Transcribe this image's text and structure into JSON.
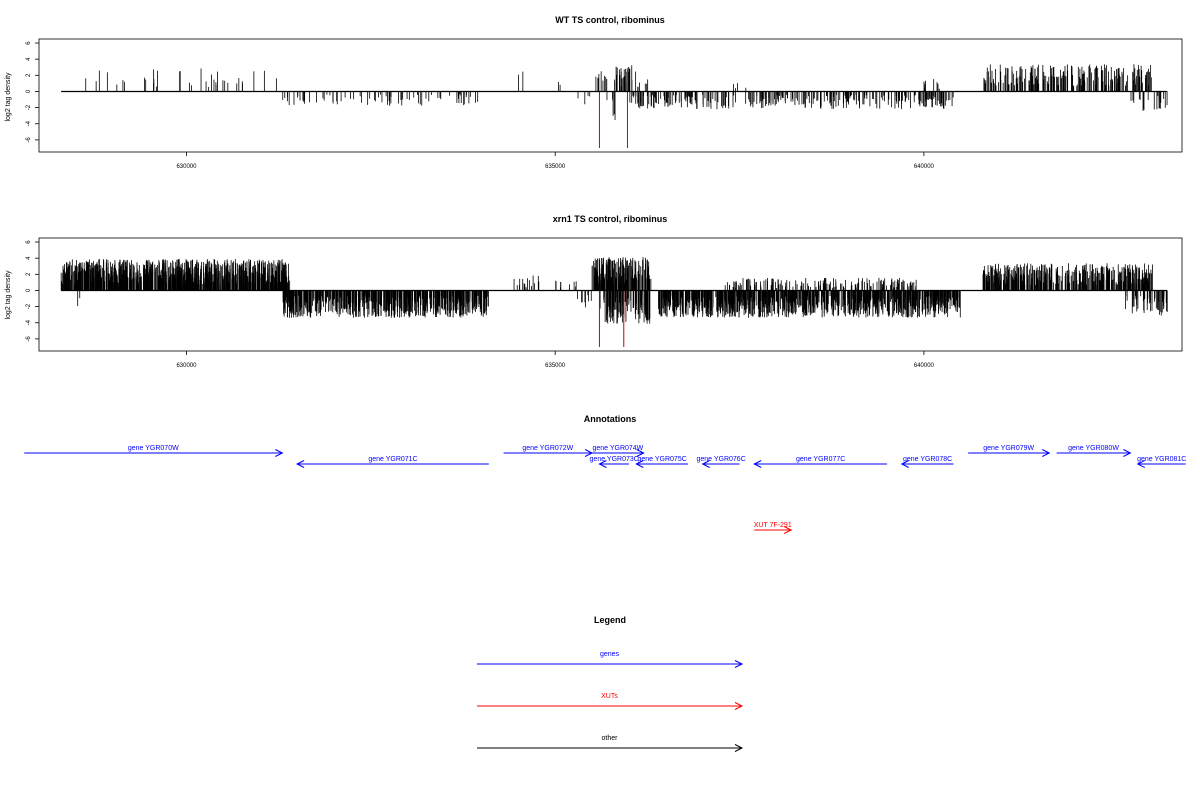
{
  "chart_data": [
    {
      "type": "bar",
      "title": "WT TS control, ribominus",
      "xlabel": "",
      "ylabel": "log2 tag density",
      "xlim": [
        628000,
        643500
      ],
      "ylim": [
        -7.5,
        6.5
      ],
      "x_ticks": [
        630000,
        635000,
        640000
      ],
      "x_tick_labels": [
        "630000",
        "635000",
        "640000"
      ],
      "y_ticks": [
        -6,
        -4,
        -2,
        0,
        2,
        4,
        6
      ],
      "y_tick_labels": [
        "-6",
        "-4",
        "-2",
        "0",
        "2",
        "4",
        "6"
      ],
      "baseline": {
        "x_start": 628300,
        "x_end": 643300,
        "y": 0
      },
      "bar_color": "#000000",
      "highlight_color": "#cc0000",
      "positive_regions": [
        {
          "from": 628300,
          "to": 631300,
          "height": 2.2,
          "density": 0.012
        },
        {
          "from": 634500,
          "to": 634600,
          "height": 2.5,
          "density": 0.02
        },
        {
          "from": 635000,
          "to": 635100,
          "height": 1.5,
          "density": 0.02
        },
        {
          "from": 635550,
          "to": 635700,
          "height": 2.0,
          "density": 0.06
        },
        {
          "from": 635800,
          "to": 636100,
          "height": 2.5,
          "density": 0.1
        },
        {
          "from": 636100,
          "to": 636300,
          "height": 1.5,
          "density": 0.03
        },
        {
          "from": 637400,
          "to": 637600,
          "height": 0.8,
          "density": 0.02
        },
        {
          "from": 639900,
          "to": 640300,
          "height": 1.2,
          "density": 0.02
        },
        {
          "from": 640800,
          "to": 643100,
          "height": 2.6,
          "density": 0.09
        }
      ],
      "negative_regions": [
        {
          "from": 631300,
          "to": 634000,
          "height": -1.4,
          "density": 0.028
        },
        {
          "from": 635300,
          "to": 635500,
          "height": -1.4,
          "density": 0.02
        },
        {
          "from": 635700,
          "to": 635850,
          "height": -3.0,
          "density": 0.04
        },
        {
          "from": 636000,
          "to": 640400,
          "height": -1.7,
          "density": 0.07
        },
        {
          "from": 642800,
          "to": 643300,
          "height": -2.0,
          "density": 0.04
        }
      ],
      "highlight_bars": [
        {
          "x": 635600,
          "y": -7.0
        },
        {
          "x": 635980,
          "y": -7.0
        }
      ]
    },
    {
      "type": "bar",
      "title": "xrn1 TS control, ribominus",
      "xlabel": "",
      "ylabel": "log2 tag density",
      "xlim": [
        628000,
        643500
      ],
      "ylim": [
        -7.5,
        6.5
      ],
      "x_ticks": [
        630000,
        635000,
        640000
      ],
      "x_tick_labels": [
        "630000",
        "635000",
        "640000"
      ],
      "y_ticks": [
        -6,
        -4,
        -2,
        0,
        2,
        4,
        6
      ],
      "y_tick_labels": [
        "-6",
        "-4",
        "-2",
        "0",
        "2",
        "4",
        "6"
      ],
      "baseline": {
        "x_start": 628300,
        "x_end": 643300,
        "y": 0
      },
      "bar_color": "#000000",
      "highlight_color": "#cc0000",
      "positive_regions": [
        {
          "from": 628300,
          "to": 631400,
          "height": 3.0,
          "density": 0.25
        },
        {
          "from": 634400,
          "to": 634800,
          "height": 1.5,
          "density": 0.04
        },
        {
          "from": 635000,
          "to": 635300,
          "height": 1.0,
          "density": 0.03
        },
        {
          "from": 635500,
          "to": 636300,
          "height": 3.2,
          "density": 0.22
        },
        {
          "from": 637300,
          "to": 639900,
          "height": 1.2,
          "density": 0.06
        },
        {
          "from": 640800,
          "to": 643100,
          "height": 2.6,
          "density": 0.18
        }
      ],
      "negative_regions": [
        {
          "from": 628500,
          "to": 628600,
          "height": -1.8,
          "density": 0.02
        },
        {
          "from": 631300,
          "to": 634100,
          "height": -2.6,
          "density": 0.2
        },
        {
          "from": 635300,
          "to": 635500,
          "height": -1.8,
          "density": 0.04
        },
        {
          "from": 635600,
          "to": 636300,
          "height": -3.2,
          "density": 0.15
        },
        {
          "from": 636400,
          "to": 640500,
          "height": -2.6,
          "density": 0.22
        },
        {
          "from": 642700,
          "to": 643300,
          "height": -2.4,
          "density": 0.08
        }
      ],
      "highlight_bars": [
        {
          "x": 635600,
          "y": -7.0
        },
        {
          "x": 635930,
          "y": -7.0
        }
      ]
    }
  ],
  "annotations": {
    "title": "Annotations",
    "items": [
      {
        "label": "gene YGR070W",
        "from": 627800,
        "to": 631300,
        "row": 0,
        "strand": "+",
        "color": "#0000ff"
      },
      {
        "label": "gene YGR071C",
        "from": 631500,
        "to": 634100,
        "row": 1,
        "strand": "-",
        "color": "#0000ff"
      },
      {
        "label": "gene YGR072W",
        "from": 634300,
        "to": 635500,
        "row": 0,
        "strand": "+",
        "color": "#0000ff"
      },
      {
        "label": "gene YGR074W",
        "from": 635500,
        "to": 636200,
        "row": 0,
        "strand": "+",
        "color": "#0000ff"
      },
      {
        "label": "gene YGR073C",
        "from": 635600,
        "to": 636000,
        "row": 1,
        "strand": "-",
        "color": "#0000ff"
      },
      {
        "label": "gene YGR075C",
        "from": 636100,
        "to": 636800,
        "row": 1,
        "strand": "-",
        "color": "#0000ff"
      },
      {
        "label": "gene YGR076C",
        "from": 637000,
        "to": 637500,
        "row": 1,
        "strand": "-",
        "color": "#0000ff"
      },
      {
        "label": "gene YGR077C",
        "from": 637700,
        "to": 639500,
        "row": 1,
        "strand": "-",
        "color": "#0000ff"
      },
      {
        "label": "gene YGR078C",
        "from": 639700,
        "to": 640400,
        "row": 1,
        "strand": "-",
        "color": "#0000ff"
      },
      {
        "label": "gene YGR079W",
        "from": 640600,
        "to": 641700,
        "row": 0,
        "strand": "+",
        "color": "#0000ff"
      },
      {
        "label": "gene YGR080W",
        "from": 641800,
        "to": 642800,
        "row": 0,
        "strand": "+",
        "color": "#0000ff"
      },
      {
        "label": "gene YGR081C",
        "from": 642900,
        "to": 643550,
        "row": 1,
        "strand": "-",
        "color": "#0000ff"
      },
      {
        "label": "XUT 7F-291",
        "from": 637700,
        "to": 638200,
        "row": 7,
        "strand": "+",
        "color": "#ff0000"
      }
    ]
  },
  "legend": {
    "title": "Legend",
    "items": [
      {
        "label": "genes",
        "color": "#0000ff"
      },
      {
        "label": "XUTs",
        "color": "#ff0000"
      },
      {
        "label": "other",
        "color": "#000000"
      }
    ]
  }
}
